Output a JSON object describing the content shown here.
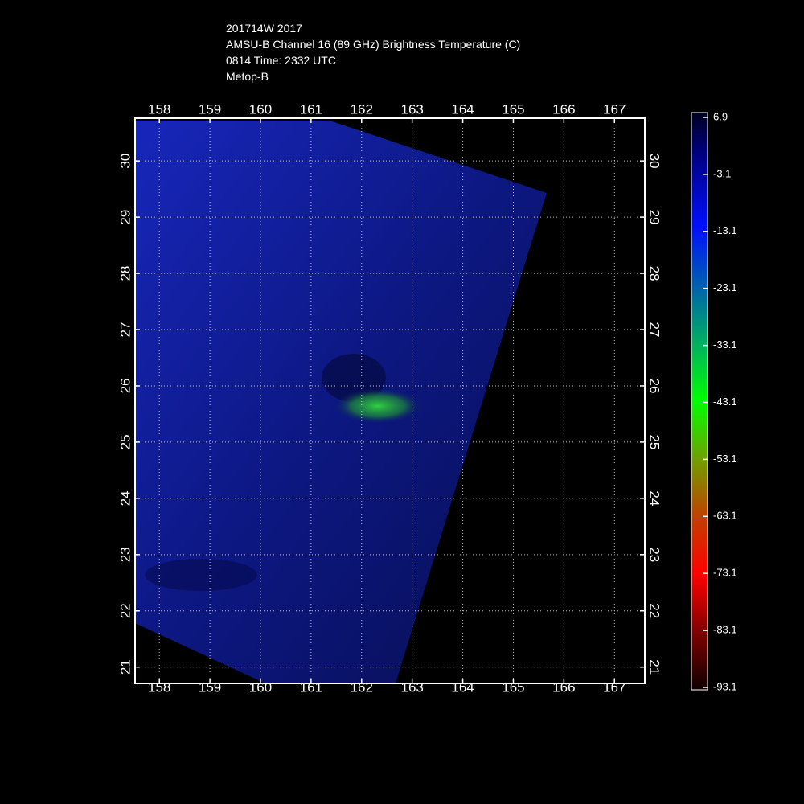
{
  "header": {
    "lines": [
      "201714W 2017",
      "AMSU-B Channel 16 (89 GHz) Brightness Temperature (C)",
      "0814 Time: 2332 UTC",
      "Metop-B"
    ]
  },
  "map": {
    "lonlim": [
      157.52,
      167.6
    ],
    "latlim": [
      20.71,
      30.76
    ],
    "lonticks": [
      158,
      159,
      160,
      161,
      162,
      163,
      164,
      165,
      166,
      167
    ],
    "latticks": [
      21,
      22,
      23,
      24,
      25,
      26,
      27,
      28,
      29,
      30
    ],
    "grid": true
  },
  "colorbar": {
    "lim": [
      -93.1,
      6.9
    ],
    "ticks": [
      6.9,
      -3.1,
      -13.1,
      -23.1,
      -33.1,
      -43.1,
      -53.1,
      -63.1,
      -73.1,
      -83.1,
      -93.1
    ]
  }
}
